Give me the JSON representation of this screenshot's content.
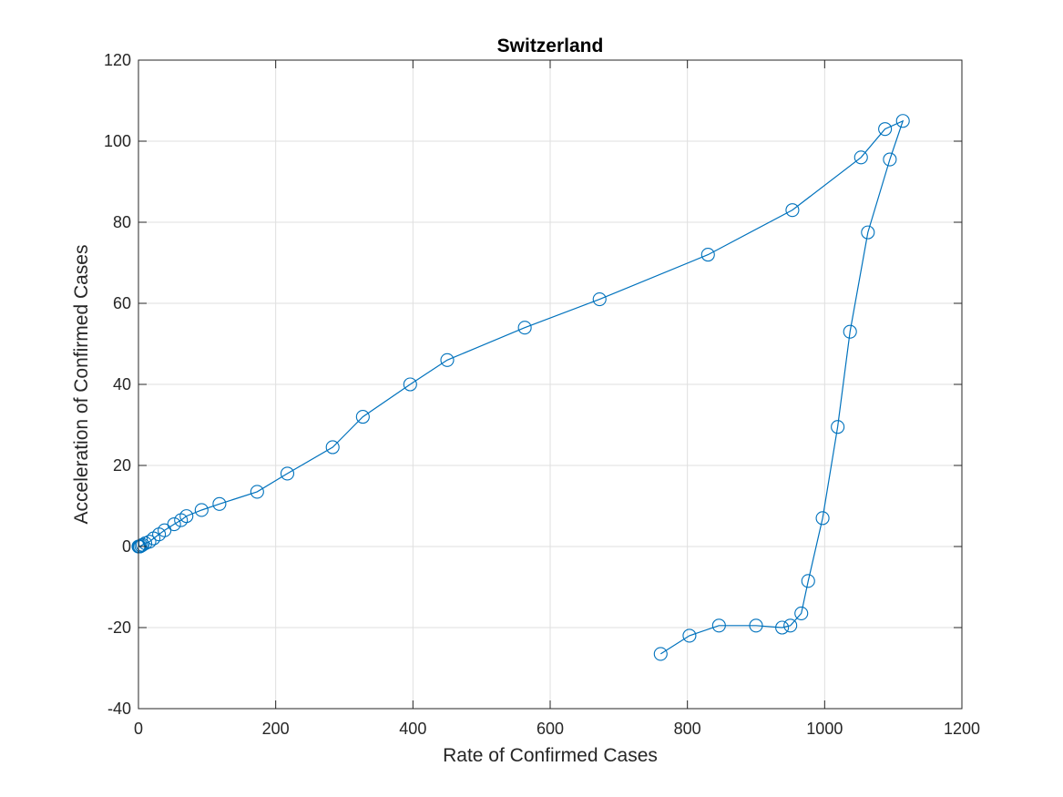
{
  "chart_data": {
    "type": "line",
    "title": "Switzerland",
    "xlabel": "Rate of Confirmed Cases",
    "ylabel": "Acceleration of Confirmed Cases",
    "xlim": [
      0,
      1200
    ],
    "ylim": [
      -40,
      120
    ],
    "xticks": [
      0,
      200,
      400,
      600,
      800,
      1000,
      1200
    ],
    "yticks": [
      -40,
      -20,
      0,
      20,
      40,
      60,
      80,
      100,
      120
    ],
    "grid": true,
    "marker": "circle-open",
    "series_color": "#0072bd",
    "series": [
      {
        "x": [
          0,
          1,
          2,
          4,
          6,
          10,
          16,
          22,
          30,
          38,
          52,
          62,
          70,
          92,
          118,
          173,
          217,
          283,
          327,
          396,
          450,
          563,
          672,
          830,
          953,
          1053,
          1088,
          1114,
          1095,
          1063,
          1037,
          1019,
          997,
          976,
          966,
          950,
          938,
          900,
          846,
          803,
          761
        ],
        "y": [
          0,
          0,
          0,
          0.2,
          0.4,
          0.8,
          1.2,
          2,
          3,
          4,
          5.5,
          6.5,
          7.5,
          9,
          10.5,
          13.5,
          18,
          24.5,
          32,
          40,
          46,
          54,
          61,
          72,
          83,
          96,
          103,
          105,
          95.5,
          77.5,
          53,
          29.5,
          7,
          -8.5,
          -16.5,
          -19.5,
          -20,
          -19.5,
          -19.5,
          -22,
          -26.5
        ]
      }
    ]
  }
}
